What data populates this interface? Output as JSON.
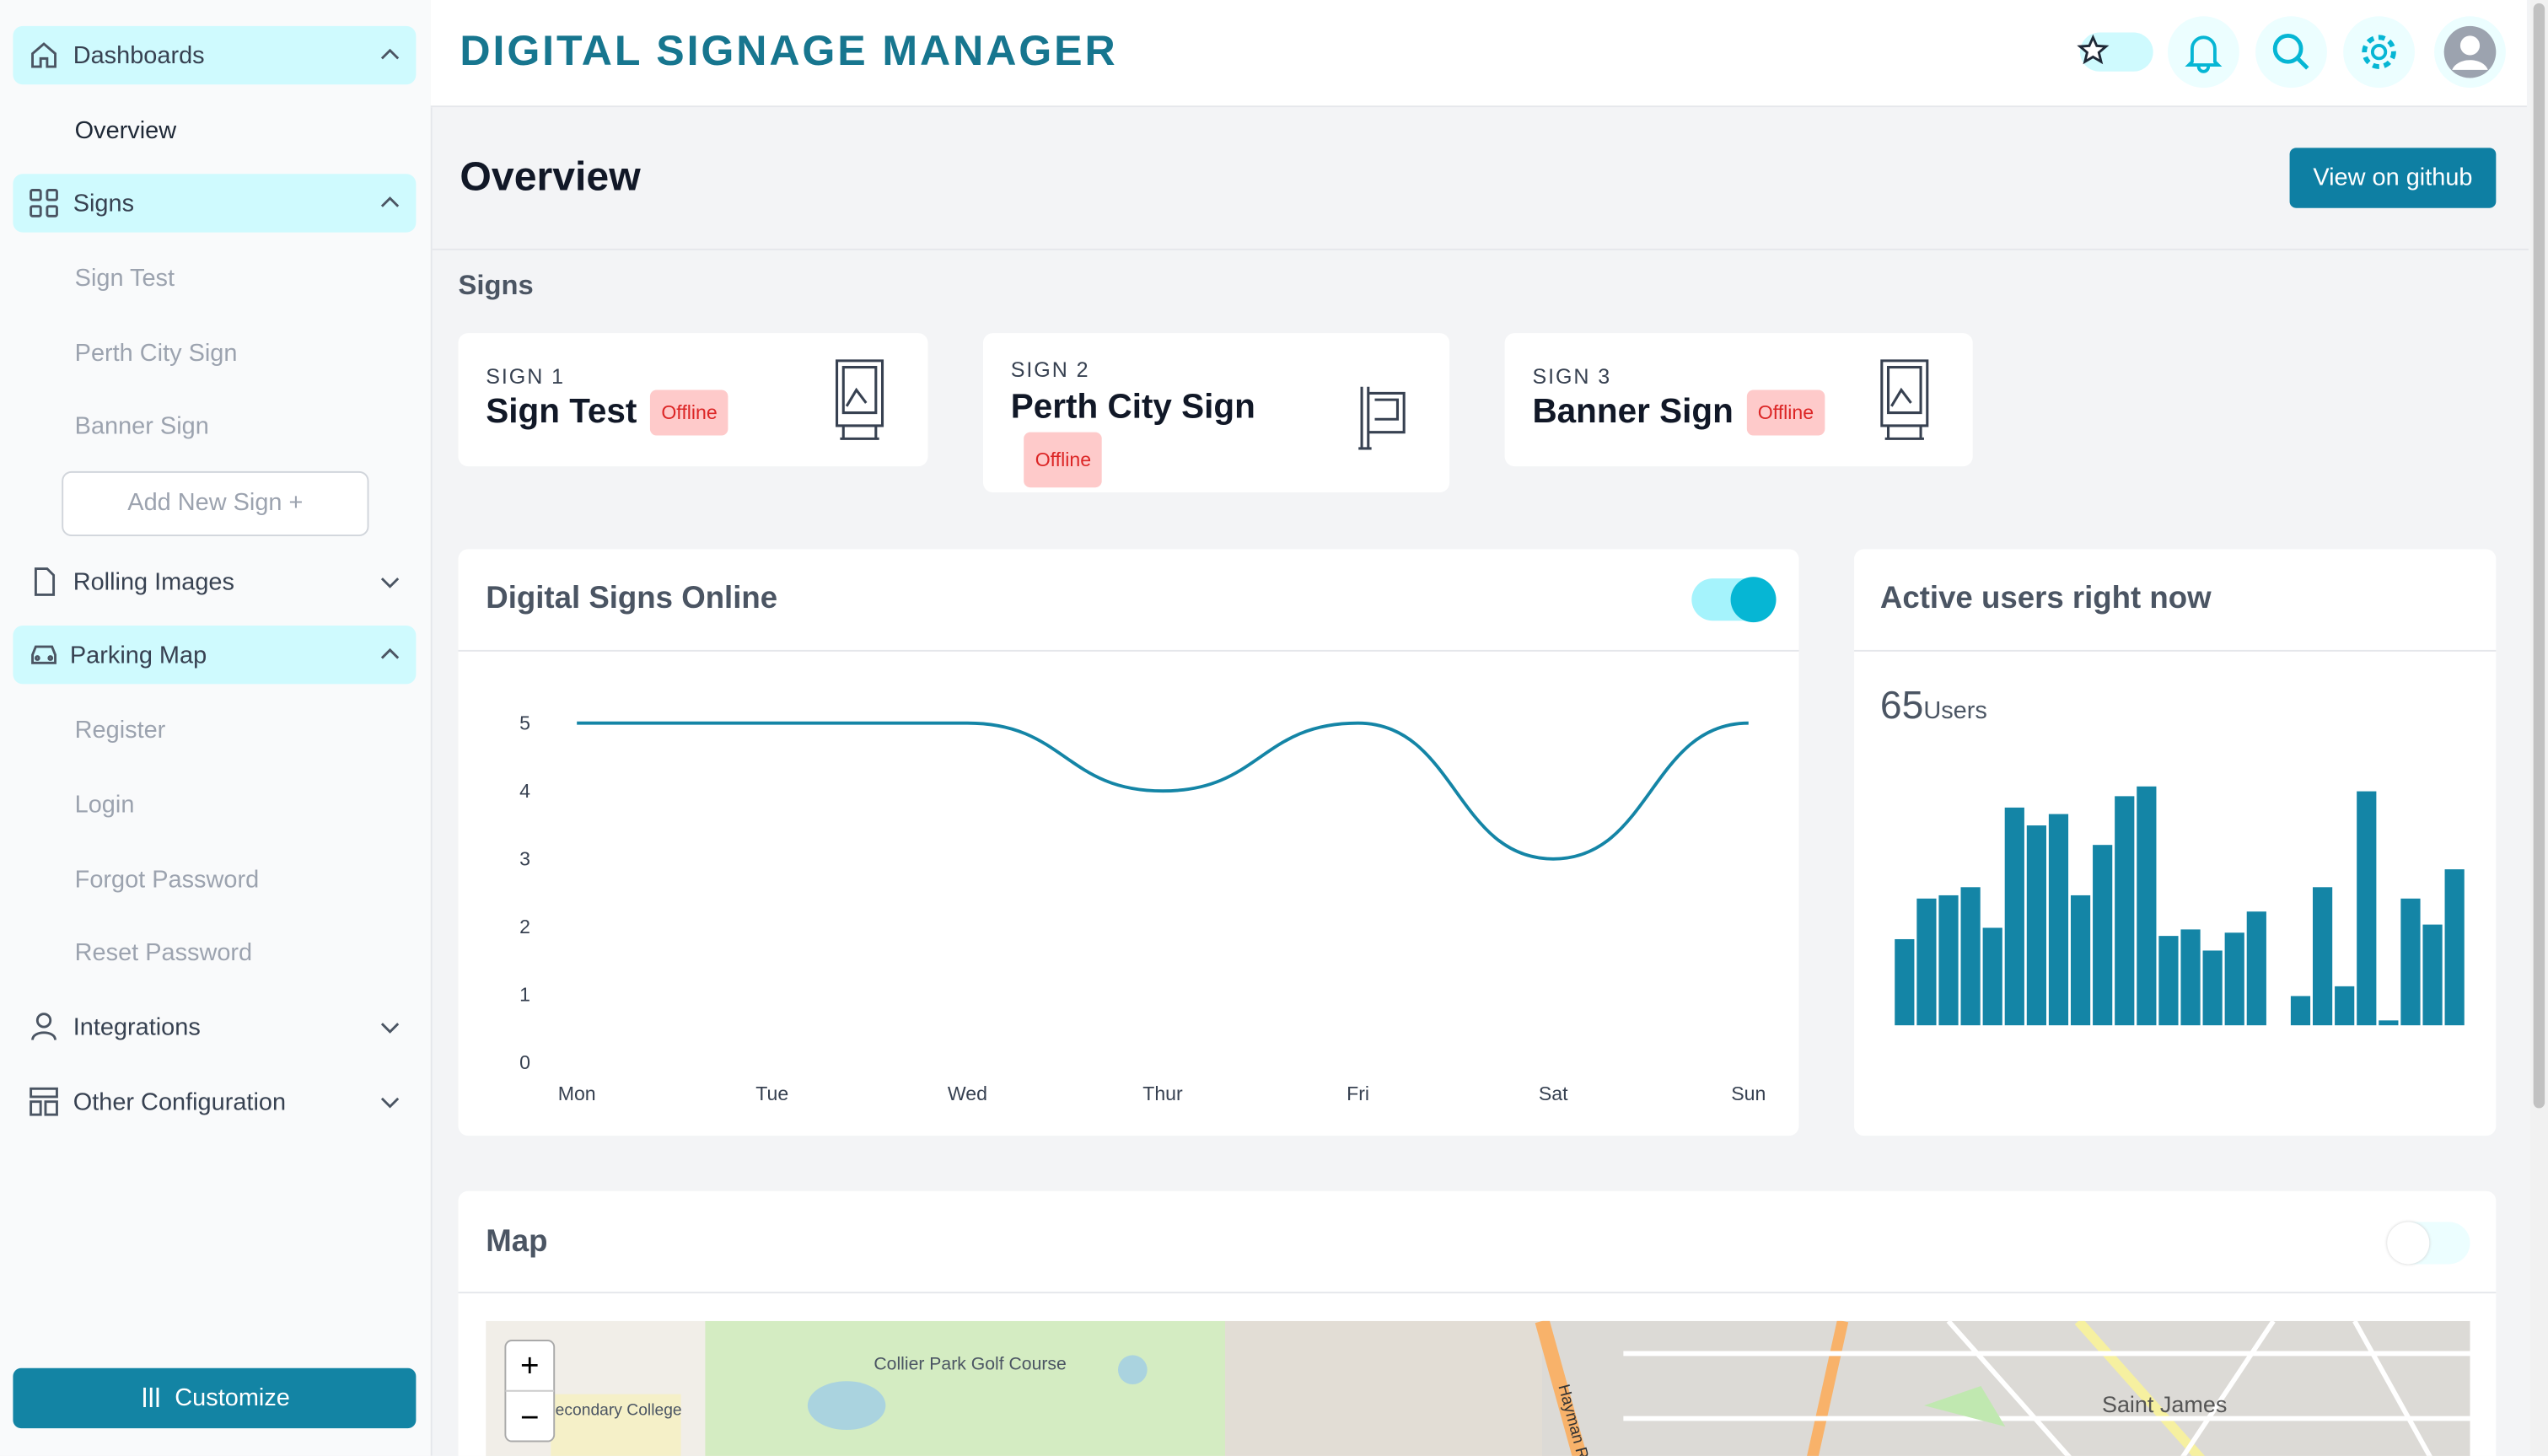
{
  "sidebar": {
    "dashboards": "Dashboards",
    "overview": "Overview",
    "signs": "Signs",
    "sign_items": [
      "Sign Test",
      "Perth City Sign",
      "Banner Sign"
    ],
    "add_sign": "Add New Sign +",
    "rolling_images": "Rolling Images",
    "parking_map": "Parking Map",
    "parking_items": [
      "Register",
      "Login",
      "Forgot Password",
      "Reset Password"
    ],
    "integrations": "Integrations",
    "other_configuration": "Other Configuration",
    "customize": "Customize"
  },
  "header": {
    "title": "DIGITAL SIGNAGE MANAGER"
  },
  "page": {
    "title": "Overview",
    "button": "View on github"
  },
  "signs": {
    "heading": "Signs",
    "cards": [
      {
        "label": "SIGN 1",
        "name": "Sign Test",
        "status": "Offline"
      },
      {
        "label": "SIGN 2",
        "name": "Perth City Sign",
        "status": "Offline"
      },
      {
        "label": "SIGN 3",
        "name": "Banner Sign",
        "status": "Offline"
      }
    ]
  },
  "chart_data": [
    {
      "type": "line",
      "title": "Digital Signs Online",
      "categories": [
        "Mon",
        "Tue",
        "Wed",
        "Thur",
        "Fri",
        "Sat",
        "Sun"
      ],
      "values": [
        5,
        5,
        5,
        4,
        5,
        3,
        5
      ],
      "color": "#1485a6",
      "ylim": [
        0,
        5
      ],
      "yticks": [
        0,
        1,
        2,
        3,
        4,
        5
      ]
    },
    {
      "type": "bar",
      "title": "Active users right now",
      "stat": 65,
      "stat_unit": "Users",
      "values": [
        53,
        78,
        80,
        85,
        60,
        134,
        123,
        130,
        80,
        111,
        141,
        147,
        55,
        59,
        46,
        57,
        70,
        0,
        18,
        85,
        24,
        144,
        3,
        78,
        62,
        96
      ],
      "color": "#1485a6"
    }
  ],
  "map": {
    "title": "Map",
    "zoom_in": "+",
    "zoom_out": "−",
    "labels": [
      "Collier Park Golf Course",
      "mo Secondary College",
      "Saint James",
      "Hayman Road"
    ]
  }
}
